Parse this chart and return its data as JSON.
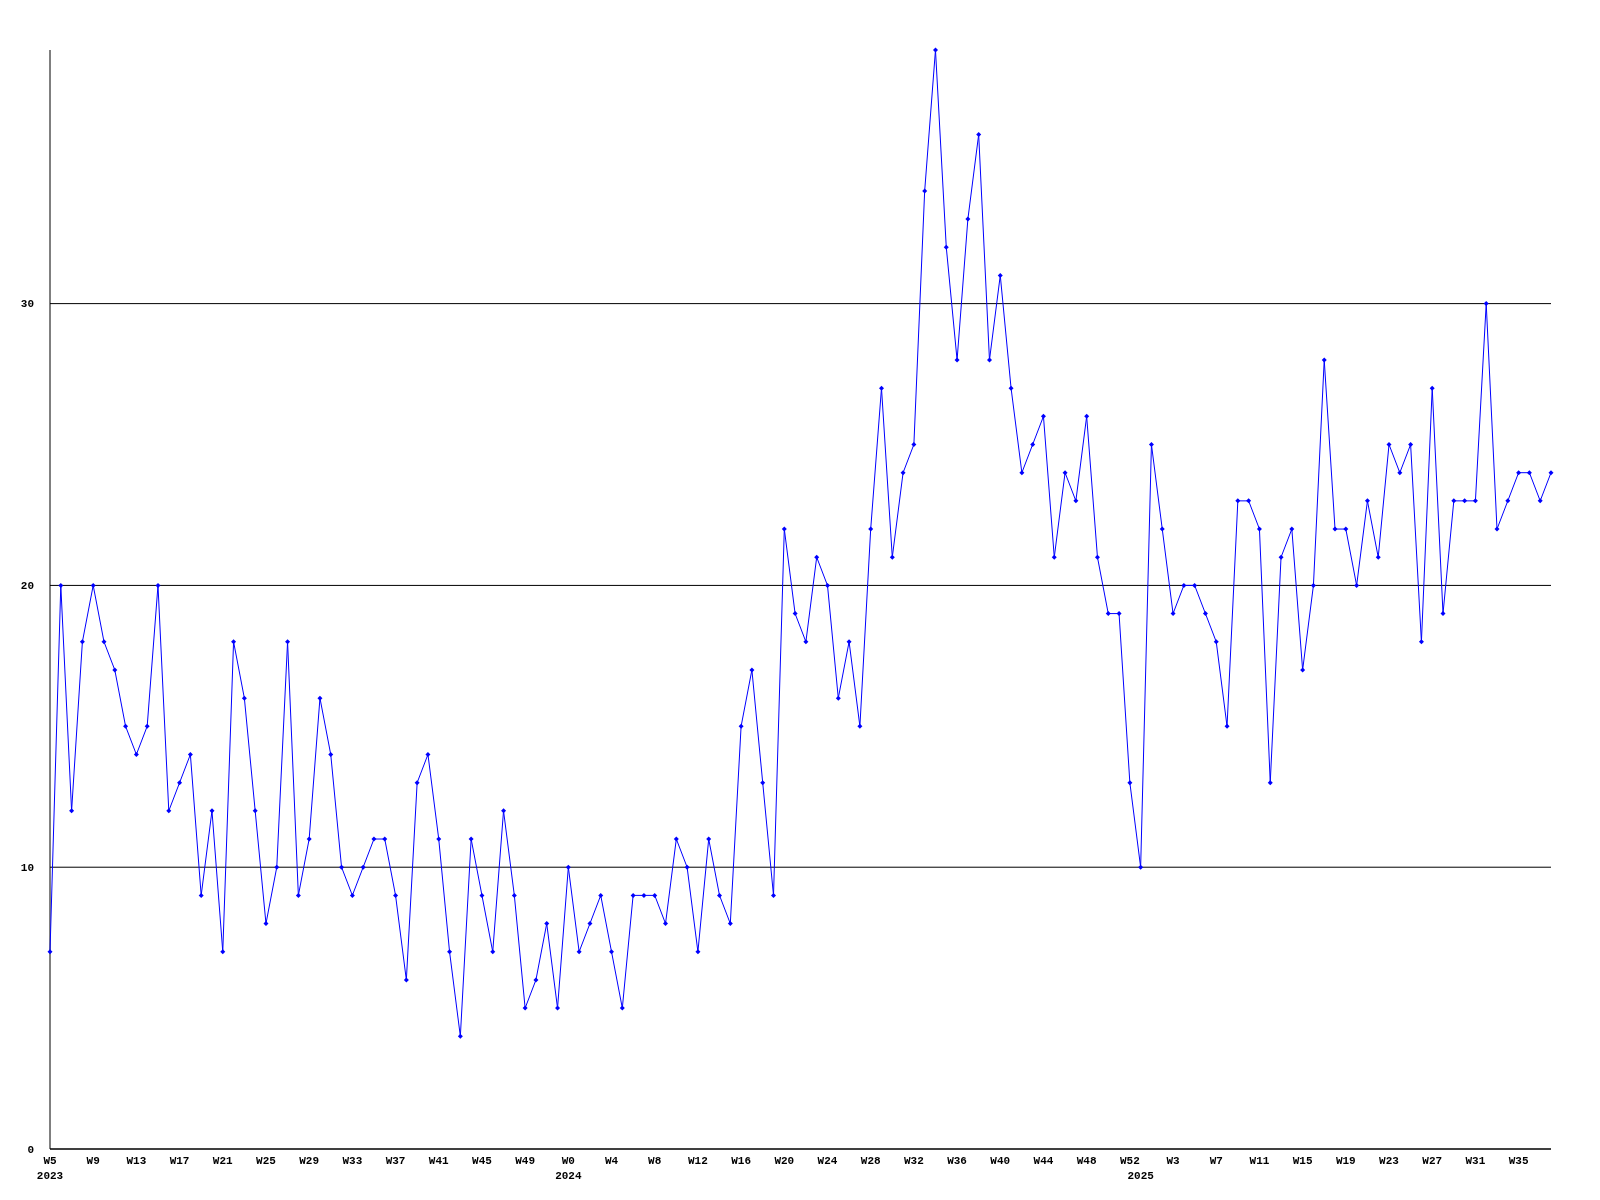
{
  "chart_data": {
    "type": "line",
    "categories": [
      "W5\n2023",
      null,
      null,
      null,
      "W9",
      null,
      null,
      null,
      "W13",
      null,
      null,
      null,
      "W17",
      null,
      null,
      null,
      "W21",
      null,
      null,
      null,
      "W25",
      null,
      null,
      null,
      "W29",
      null,
      null,
      null,
      "W33",
      null,
      null,
      null,
      "W37",
      null,
      null,
      null,
      "W41",
      null,
      null,
      null,
      "W45",
      null,
      null,
      null,
      "W49",
      null,
      null,
      null,
      "W0\n2024",
      null,
      null,
      null,
      "W4",
      null,
      null,
      null,
      "W8",
      null,
      null,
      null,
      "W12",
      null,
      null,
      null,
      "W16",
      null,
      null,
      null,
      "W20",
      null,
      null,
      null,
      "W24",
      null,
      null,
      null,
      "W28",
      null,
      null,
      null,
      "W32",
      null,
      null,
      null,
      "W36",
      null,
      null,
      null,
      "W40",
      null,
      null,
      null,
      "W44",
      null,
      null,
      null,
      "W48",
      null,
      null,
      null,
      "W52",
      "\n2025",
      null,
      null,
      "W3",
      null,
      null,
      null,
      "W7",
      null,
      null,
      null,
      "W11",
      null,
      null,
      null,
      "W15",
      null,
      null,
      null,
      "W19",
      null,
      null,
      null,
      "W23",
      null,
      null,
      null,
      "W27",
      null,
      null,
      null,
      "W31",
      null,
      null,
      null,
      "W35",
      null,
      null,
      null
    ],
    "series": [
      {
        "color": "#0000ff",
        "values": [
          7,
          20,
          12,
          18,
          20,
          18,
          17,
          15,
          14,
          15,
          20,
          12,
          13,
          14,
          9,
          12,
          7,
          18,
          16,
          12,
          8,
          10,
          18,
          9,
          11,
          16,
          14,
          10,
          9,
          10,
          11,
          11,
          9,
          6,
          13,
          14,
          11,
          7,
          4,
          11,
          9,
          7,
          12,
          9,
          5,
          6,
          8,
          5,
          10,
          7,
          8,
          9,
          7,
          5,
          9,
          9,
          9,
          8,
          11,
          10,
          7,
          11,
          9,
          8,
          15,
          17,
          13,
          9,
          22,
          19,
          18,
          21,
          20,
          16,
          18,
          15,
          22,
          27,
          21,
          24,
          25,
          34,
          39,
          32,
          28,
          33,
          36,
          28,
          31,
          27,
          24,
          25,
          26,
          21,
          24,
          23,
          26,
          21,
          19,
          19,
          13,
          10,
          25,
          22,
          19,
          20,
          20,
          19,
          18,
          15,
          23,
          23,
          22,
          13,
          21,
          22,
          17,
          20,
          28,
          22,
          22,
          20,
          23,
          21,
          25,
          24,
          25,
          18,
          27,
          19,
          23,
          23,
          23,
          30,
          22,
          23,
          24,
          24,
          23,
          24
        ]
      }
    ],
    "ylim": [
      0,
      39
    ],
    "yticks": [
      0,
      10,
      20,
      30
    ],
    "grid": "y",
    "marker": "diamond",
    "line_style": "solid"
  }
}
